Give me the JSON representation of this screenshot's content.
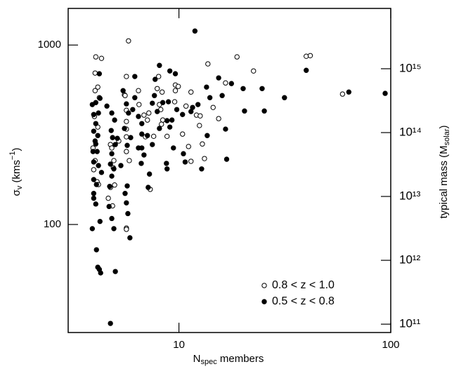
{
  "chart_data": {
    "type": "scatter",
    "xlabel": [
      "N",
      "spec",
      " members"
    ],
    "ylabel": [
      "σ",
      "v",
      " (kms",
      "−1",
      ")"
    ],
    "y2label": [
      "typical mass (M",
      "solar",
      ")"
    ],
    "xscale": "log",
    "yscale": "log",
    "y2scale": "log",
    "xlim": [
      3,
      100
    ],
    "ylim": [
      25,
      1600
    ],
    "y2lim": [
      74000000000.0,
      8800000000000000.0
    ],
    "xticks": [
      10,
      100
    ],
    "yticks": [
      100,
      1000
    ],
    "y2ticks": [
      {
        "value": 100000000000.0,
        "label": "10¹¹"
      },
      {
        "value": 1000000000000.0,
        "label": "10¹²"
      },
      {
        "value": 10000000000000.0,
        "label": "10¹³"
      },
      {
        "value": 100000000000000.0,
        "label": "10¹⁴"
      },
      {
        "value": 1000000000000000.0,
        "label": "10¹⁵"
      }
    ],
    "legend": "lower right",
    "series": [
      {
        "name": "0.8 < z < 1.0",
        "marker": "open",
        "color": "#000000",
        "x": [
          4.05,
          4.31,
          4.02,
          4.14,
          4.21,
          4.02,
          3.99,
          4.14,
          3.93,
          4.02,
          3.96,
          4.11,
          4.17,
          4.75,
          4.82,
          4.93,
          4.97,
          4.9,
          4.75,
          5.53,
          5.78,
          5.65,
          5.57,
          5.65,
          5.65,
          5.65,
          5.83,
          5.65,
          5.65,
          5.65,
          5.65,
          4.86,
          6.48,
          6.84,
          7.21,
          7.1,
          7.32,
          8.02,
          7.9,
          8.09,
          8.21,
          8.39,
          8.27,
          8.33,
          9.62,
          9.93,
          9.62,
          10.4,
          11.4,
          11.1,
          11.4,
          12.1,
          12.6,
          12.5,
          12.9,
          13.2,
          13.7,
          14.5,
          15.4,
          16.6,
          18.8,
          22.5,
          39.9,
          41.7,
          59.2,
          8.79,
          6.95,
          6.44,
          5.2,
          4.64,
          7.6,
          10.8,
          9.55
        ],
        "values": [
          859,
          843,
          698,
          583,
          509,
          557,
          400,
          349,
          267,
          227,
          202,
          173,
          167,
          279,
          267,
          227,
          166,
          207,
          161,
          528,
          1055,
          668,
          523,
          433,
          375,
          340,
          227,
          308,
          255,
          95.5,
          94.0,
          127,
          466,
          407,
          418,
          382,
          157,
          668,
          572,
          466,
          437,
          382,
          362,
          547,
          599,
          588,
          557,
          319,
          547,
          272,
          225,
          407,
          403,
          356,
          281,
          233,
          785,
          449,
          389,
          615,
          859,
          717,
          866,
          873,
          533,
          310,
          308,
          557,
          292,
          140,
          310,
          457,
          483
        ]
      },
      {
        "name": "0.5 < z < 0.8",
        "marker": "filled",
        "color": "#000000",
        "x": [
          4.21,
          3.9,
          4.05,
          4.24,
          3.96,
          4.05,
          4.17,
          3.96,
          4.14,
          4.02,
          3.93,
          4.11,
          3.96,
          4.17,
          3.96,
          4.08,
          3.96,
          3.96,
          4.05,
          3.9,
          4.24,
          4.08,
          4.14,
          4.21,
          4.27,
          4.75,
          5.01,
          4.57,
          4.82,
          4.97,
          4.79,
          4.86,
          5.01,
          4.82,
          4.75,
          4.93,
          4.71,
          4.68,
          4.82,
          4.93,
          5.7,
          5.57,
          5.65,
          5.74,
          5.87,
          5.45,
          5.65,
          5.78,
          6.05,
          5.53,
          5.92,
          5.7,
          6.19,
          6.19,
          6.44,
          6.68,
          6.68,
          6.84,
          6.64,
          7.26,
          7.16,
          7.72,
          7.66,
          7.9,
          8.09,
          8.73,
          8.79,
          8.92,
          9.06,
          9.62,
          9.27,
          9.77,
          9.42,
          10.5,
          11.4,
          11.6,
          11.9,
          12.3,
          12.8,
          13.5,
          14.0,
          13.6,
          15.4,
          16.0,
          16.6,
          16.8,
          17.7,
          20.1,
          20.4,
          24.7,
          25.3,
          31.5,
          39.9,
          63.4,
          94.1,
          8.09,
          9.06,
          7.1,
          7.49,
          10.7,
          10.4,
          8.39,
          6.44,
          5.32,
          5.12,
          4.31,
          4.05,
          4.82,
          6.68,
          7.49,
          8.79
        ],
        "values": [
          692,
          466,
          478,
          505,
          410,
          365,
          418,
          331,
          313,
          292,
          255,
          255,
          223,
          213,
          178,
          167,
          149,
          140,
          130,
          94.8,
          104,
          72.3,
          57.8,
          56.2,
          53.7,
          28.1,
          54.7,
          457,
          418,
          382,
          334,
          305,
          279,
          248,
          217,
          204,
          163,
          126,
          108,
          94.8,
          164,
          149,
          132,
          115,
          84.3,
          557,
          470,
          418,
          437,
          343,
          305,
          276,
          668,
          509,
          400,
          365,
          267,
          244,
          219,
          191,
          161,
          644,
          523,
          426,
          343,
          219,
          204,
          483,
          717,
          692,
          382,
          437,
          267,
          248,
          426,
          449,
          1197,
          466,
          204,
          583,
          509,
          313,
          656,
          523,
          340,
          231,
          610,
          572,
          429,
          572,
          429,
          509,
          723,
          547,
          538,
          770,
          349,
          313,
          474,
          223,
          410,
          478,
          267,
          213,
          302,
          195,
          281,
          186,
          319,
          279,
          379
        ]
      }
    ]
  }
}
